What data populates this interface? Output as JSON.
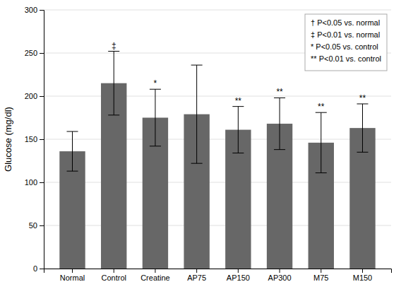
{
  "chart_data": {
    "type": "bar",
    "categories": [
      "Normal",
      "Control",
      "Creatine",
      "AP75",
      "AP150",
      "AP300",
      "M75",
      "M150"
    ],
    "values": [
      136,
      215,
      175,
      179,
      161,
      168,
      146,
      163
    ],
    "errors": [
      23,
      37,
      33,
      57,
      27,
      30,
      35,
      28
    ],
    "color": "#676767",
    "ylabel": "Glucose (mg/dl)",
    "ylim": [
      0,
      300
    ],
    "yticks": [
      0,
      50,
      100,
      150,
      200,
      250,
      300
    ],
    "grid": true,
    "legend": "upper right",
    "legend_entries": [
      "† P<0.05 vs. normal",
      "‡ P<0.01 vs. normal",
      "* P<0.05 vs. control",
      "** P<0.01 vs. control"
    ],
    "annotations": [
      {
        "category": "Control",
        "text": "‡"
      },
      {
        "category": "Creatine",
        "text": "*"
      },
      {
        "category": "AP150",
        "text": "**"
      },
      {
        "category": "AP300",
        "text": "**"
      },
      {
        "category": "M75",
        "text": "**"
      },
      {
        "category": "M150",
        "text": "**"
      }
    ]
  }
}
